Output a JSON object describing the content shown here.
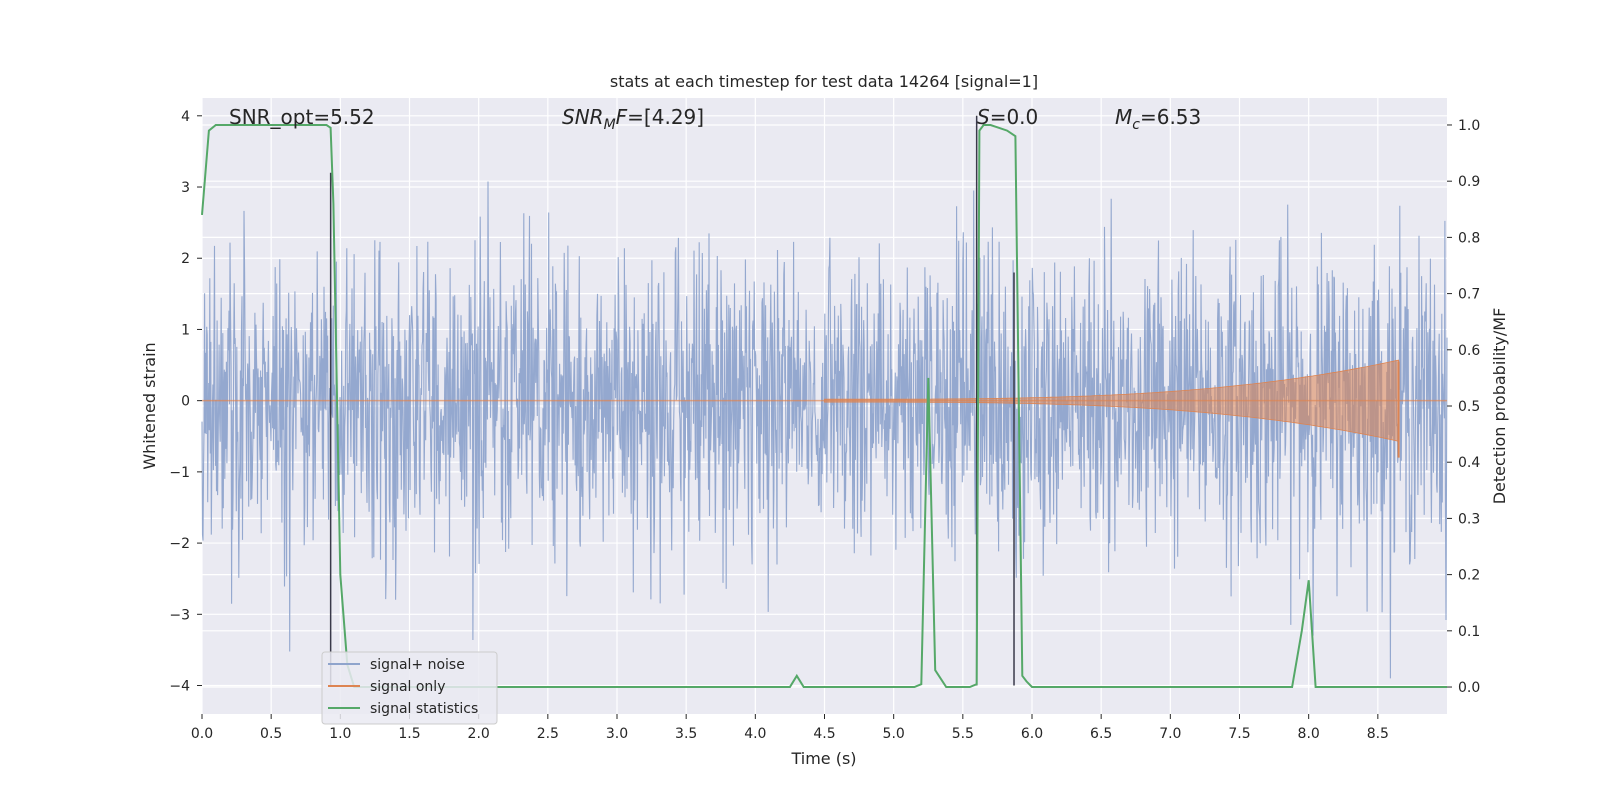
{
  "chart_data": {
    "type": "line",
    "title": "stats at each timestep for test data 14264 [signal=1]",
    "xlabel": "Time (s)",
    "ylabel_left": "Whitened strain",
    "ylabel_right": "Detection probability/MF",
    "xlim": [
      0.0,
      9.0
    ],
    "ylim_left": [
      -4.4,
      4.25
    ],
    "ylim_right": [
      -0.048,
      1.048
    ],
    "x_ticks": [
      "0.0",
      "0.5",
      "1.0",
      "1.5",
      "2.0",
      "2.5",
      "3.0",
      "3.5",
      "4.0",
      "4.5",
      "5.0",
      "5.5",
      "6.0",
      "6.5",
      "7.0",
      "7.5",
      "8.0",
      "8.5"
    ],
    "y_left_ticks": [
      "4",
      "3",
      "2",
      "1",
      "0",
      "−1",
      "−2",
      "−3",
      "−4"
    ],
    "y_right_ticks": [
      "1.0",
      "0.9",
      "0.8",
      "0.7",
      "0.6",
      "0.5",
      "0.4",
      "0.3",
      "0.2",
      "0.1",
      "0.0"
    ],
    "grid": true,
    "legend_position": "lower-left",
    "annotations": {
      "snr_opt": "SNR_opt=5.52",
      "snr_mf": "=[4.29]",
      "s_val": "=0.0",
      "mc": "=6.53"
    },
    "colors": {
      "noise": "#8fa4cc",
      "signal": "#dd8452",
      "stats": "#55a868",
      "vline": "#3a3a4a",
      "bg": "#eaeaf2"
    },
    "series": [
      {
        "name": "signal+ noise",
        "axis": "left",
        "description_values": "whitened strain noise, approx amplitude ±2.5 with spikes to ±3.5"
      },
      {
        "name": "signal only",
        "axis": "left",
        "chirp_start": 4.5,
        "chirp_end": 8.65,
        "peak_amplitude": 0.55
      },
      {
        "name": "signal statistics",
        "axis": "right",
        "x": [
          0.0,
          0.05,
          0.1,
          0.9,
          0.93,
          0.95,
          1.0,
          1.05,
          1.1,
          4.25,
          4.3,
          4.35,
          4.4,
          5.15,
          5.2,
          5.25,
          5.3,
          5.38,
          5.55,
          5.6,
          5.62,
          5.65,
          5.7,
          5.82,
          5.88,
          5.93,
          5.96,
          6.0,
          7.88,
          7.95,
          8.0,
          8.05,
          8.7,
          9.0
        ],
        "y": [
          0.84,
          0.99,
          1.0,
          1.0,
          0.995,
          0.86,
          0.2,
          0.04,
          0.0,
          0.0,
          0.02,
          0.0,
          0.0,
          0.0,
          0.005,
          0.55,
          0.03,
          0.0,
          0.0,
          0.005,
          0.99,
          1.0,
          1.0,
          0.99,
          0.98,
          0.02,
          0.01,
          0.0,
          0.0,
          0.1,
          0.19,
          0.0,
          0.0,
          0.0
        ]
      }
    ],
    "vertical_lines": [
      {
        "x": 0.93,
        "y_top": 3.2,
        "y_bottom": -4.0
      },
      {
        "x": 5.6,
        "y_top": 4.0,
        "y_bottom": -4.0
      },
      {
        "x": 5.87,
        "y_top": 1.8,
        "y_bottom": -4.0
      }
    ]
  }
}
